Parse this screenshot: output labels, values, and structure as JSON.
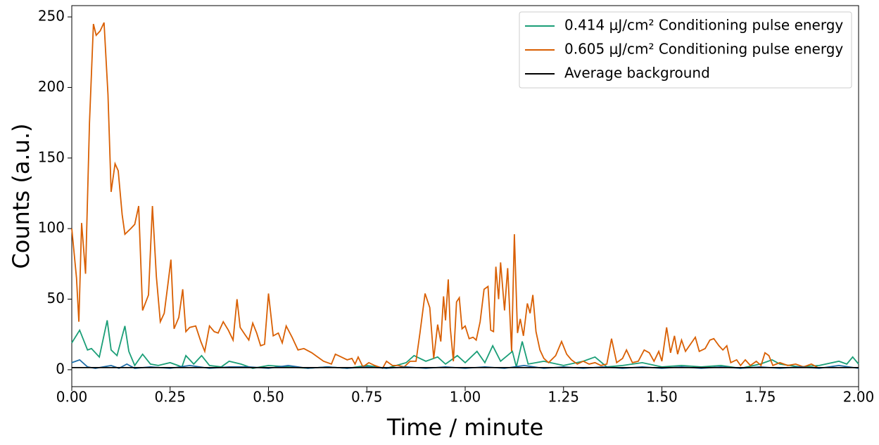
{
  "chart_data": {
    "type": "line",
    "xlabel": "Time / minute",
    "ylabel": "Counts (a.u.)",
    "xlim": [
      0,
      2
    ],
    "ylim": [
      -12,
      258
    ],
    "xticks": [
      {
        "value": 0,
        "label": "0.00"
      },
      {
        "value": 0.25,
        "label": "0.25"
      },
      {
        "value": 0.5,
        "label": "0.50"
      },
      {
        "value": 0.75,
        "label": "0.75"
      },
      {
        "value": 1,
        "label": "1.00"
      },
      {
        "value": 1.25,
        "label": "1.25"
      },
      {
        "value": 1.5,
        "label": "1.50"
      },
      {
        "value": 1.75,
        "label": "1.75"
      },
      {
        "value": 2,
        "label": "2.00"
      }
    ],
    "yticks": [
      0,
      50,
      100,
      150,
      200,
      250
    ],
    "legend": "upper right",
    "series": [
      {
        "name": "0.414 μJ/cm² Conditioning pulse energy",
        "color": "#1a9e77",
        "x": [
          0,
          0.02,
          0.04,
          0.05,
          0.07,
          0.09,
          0.1,
          0.115,
          0.135,
          0.145,
          0.16,
          0.18,
          0.2,
          0.22,
          0.25,
          0.28,
          0.29,
          0.31,
          0.33,
          0.35,
          0.38,
          0.4,
          0.43,
          0.46,
          0.5,
          0.55,
          0.6,
          0.65,
          0.7,
          0.75,
          0.8,
          0.85,
          0.87,
          0.9,
          0.93,
          0.95,
          0.98,
          1.0,
          1.03,
          1.05,
          1.07,
          1.09,
          1.12,
          1.13,
          1.145,
          1.16,
          1.2,
          1.25,
          1.3,
          1.33,
          1.36,
          1.4,
          1.45,
          1.5,
          1.55,
          1.6,
          1.65,
          1.7,
          1.75,
          1.78,
          1.8,
          1.85,
          1.9,
          1.95,
          1.97,
          1.985,
          2.0
        ],
        "values": [
          19,
          28,
          14,
          15,
          9,
          35,
          14,
          10,
          31,
          13,
          3,
          11,
          4,
          3,
          5,
          2,
          10,
          4,
          10,
          3,
          2,
          6,
          4,
          1,
          3,
          2,
          1,
          2,
          1,
          3,
          1,
          5,
          10,
          6,
          9,
          4,
          10,
          5,
          13,
          5,
          17,
          6,
          13,
          2,
          20,
          4,
          6,
          3,
          6,
          9,
          2,
          3,
          5,
          2,
          3,
          2,
          3,
          1,
          4,
          7,
          4,
          2,
          3,
          6,
          4,
          9,
          4
        ]
      },
      {
        "name": "0.605 μJ/cm² Conditioning pulse energy",
        "color": "#d95f02",
        "x": [
          0,
          0.012,
          0.018,
          0.025,
          0.035,
          0.045,
          0.055,
          0.062,
          0.072,
          0.082,
          0.092,
          0.1,
          0.11,
          0.118,
          0.128,
          0.135,
          0.15,
          0.16,
          0.17,
          0.18,
          0.195,
          0.205,
          0.215,
          0.225,
          0.235,
          0.245,
          0.252,
          0.26,
          0.272,
          0.282,
          0.29,
          0.3,
          0.315,
          0.328,
          0.338,
          0.35,
          0.362,
          0.372,
          0.385,
          0.398,
          0.41,
          0.42,
          0.428,
          0.44,
          0.45,
          0.46,
          0.47,
          0.48,
          0.49,
          0.5,
          0.512,
          0.525,
          0.535,
          0.545,
          0.56,
          0.575,
          0.59,
          0.61,
          0.64,
          0.66,
          0.67,
          0.685,
          0.7,
          0.712,
          0.72,
          0.728,
          0.74,
          0.755,
          0.77,
          0.79,
          0.8,
          0.815,
          0.83,
          0.845,
          0.86,
          0.875,
          0.885,
          0.898,
          0.91,
          0.92,
          0.93,
          0.938,
          0.945,
          0.95,
          0.957,
          0.962,
          0.97,
          0.978,
          0.985,
          0.992,
          1.0,
          1.01,
          1.02,
          1.028,
          1.038,
          1.048,
          1.058,
          1.065,
          1.072,
          1.078,
          1.085,
          1.09,
          1.1,
          1.108,
          1.118,
          1.125,
          1.133,
          1.14,
          1.148,
          1.158,
          1.165,
          1.172,
          1.18,
          1.19,
          1.2,
          1.212,
          1.23,
          1.245,
          1.258,
          1.27,
          1.285,
          1.3,
          1.315,
          1.33,
          1.345,
          1.36,
          1.372,
          1.385,
          1.4,
          1.41,
          1.425,
          1.44,
          1.455,
          1.468,
          1.48,
          1.492,
          1.5,
          1.512,
          1.522,
          1.532,
          1.54,
          1.55,
          1.56,
          1.575,
          1.585,
          1.595,
          1.61,
          1.622,
          1.632,
          1.645,
          1.655,
          1.665,
          1.675,
          1.69,
          1.7,
          1.712,
          1.725,
          1.74,
          1.752,
          1.762,
          1.772,
          1.782,
          1.8,
          1.82,
          1.84,
          1.86,
          1.88,
          1.9
        ],
        "values": [
          100,
          65,
          34,
          104,
          68,
          175,
          245,
          237,
          240,
          246,
          195,
          126,
          146,
          141,
          110,
          96,
          100,
          103,
          116,
          42,
          53,
          116,
          66,
          34,
          40,
          62,
          78,
          29,
          37,
          57,
          27,
          30,
          31,
          20,
          13,
          31,
          27,
          26,
          34,
          28,
          21,
          50,
          30,
          25,
          21,
          33,
          26,
          17,
          18,
          54,
          24,
          26,
          19,
          31,
          23,
          14,
          15,
          12,
          6,
          4,
          11,
          9,
          7,
          8,
          4,
          9,
          2,
          5,
          3,
          1,
          6,
          3,
          3,
          2,
          6,
          6,
          26,
          54,
          44,
          8,
          32,
          20,
          52,
          35,
          64,
          30,
          6,
          48,
          51,
          29,
          31,
          22,
          23,
          21,
          34,
          57,
          59,
          28,
          27,
          73,
          50,
          76,
          42,
          72,
          13,
          96,
          26,
          36,
          24,
          47,
          40,
          53,
          27,
          14,
          8,
          5,
          10,
          20,
          11,
          7,
          4,
          6,
          4,
          5,
          3,
          4,
          22,
          5,
          8,
          14,
          5,
          6,
          14,
          12,
          6,
          13,
          6,
          30,
          12,
          24,
          11,
          21,
          13,
          19,
          23,
          13,
          15,
          21,
          22,
          17,
          14,
          17,
          5,
          7,
          3,
          7,
          3,
          6,
          3,
          12,
          10,
          3,
          5,
          3,
          4,
          2,
          4,
          1
        ]
      },
      {
        "color": "#1f6ea8",
        "x": [
          0,
          0.02,
          0.04,
          0.06,
          0.08,
          0.1,
          0.12,
          0.14,
          0.16,
          0.2,
          0.25,
          0.3,
          0.35,
          0.4,
          0.45,
          0.5,
          0.55,
          0.6,
          0.65,
          0.7,
          0.75,
          0.8,
          0.85,
          0.9,
          0.95,
          1.0,
          1.05,
          1.1,
          1.15,
          1.2,
          1.25,
          1.3,
          1.35,
          1.4,
          1.45,
          1.5,
          1.55,
          1.6,
          1.65,
          1.7,
          1.75,
          1.8,
          1.85,
          1.9,
          1.95,
          2.0
        ],
        "values": [
          5,
          7,
          2,
          1,
          2,
          3,
          1,
          4,
          1,
          2,
          1,
          3,
          1,
          2,
          2,
          1,
          3,
          1,
          2,
          1,
          2,
          1,
          2,
          1,
          2,
          1,
          2,
          1,
          3,
          1,
          2,
          1,
          2,
          1,
          2,
          1,
          2,
          1,
          2,
          1,
          2,
          1,
          2,
          1,
          3,
          1
        ]
      },
      {
        "name": "Average background",
        "color": "#000000",
        "x": [
          0,
          2
        ],
        "values": [
          1.5,
          1.5
        ]
      }
    ]
  }
}
